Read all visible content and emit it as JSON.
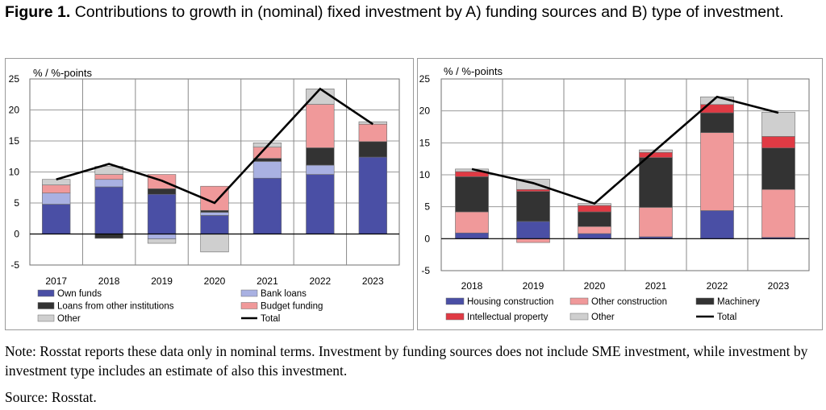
{
  "figure": {
    "number": "Figure 1.",
    "caption": "Contributions to growth in (nominal) fixed investment by A) funding sources and B) type of investment."
  },
  "note": "Note: Rosstat reports these data only in nominal terms. Investment by funding sources does not include SME investment, while investment by investment type includes an estimate of also this investment.",
  "source": "Source: Rosstat.",
  "chart_data": [
    {
      "type": "bar",
      "stacked": true,
      "title": "",
      "ylabel": "% / %-points",
      "ylim": [
        -5,
        25
      ],
      "yticks": [
        -5,
        0,
        5,
        10,
        15,
        20,
        25
      ],
      "grid": true,
      "legend_position": "bottom",
      "categories": [
        "2017",
        "2018",
        "2019",
        "2020",
        "2021",
        "2022",
        "2023"
      ],
      "series": [
        {
          "name": "Own funds",
          "color": "#4a4fa5",
          "values": [
            4.8,
            7.6,
            6.4,
            3.0,
            9.0,
            9.6,
            12.4
          ]
        },
        {
          "name": "Bank loans",
          "color": "#a9b1e2",
          "values": [
            1.8,
            1.2,
            -0.8,
            0.5,
            2.7,
            1.5,
            0.0
          ]
        },
        {
          "name": "Loans from other institutions",
          "color": "#333333",
          "values": [
            0.0,
            -0.7,
            0.9,
            0.3,
            0.5,
            2.8,
            2.5
          ]
        },
        {
          "name": "Budget funding",
          "color": "#f0999a",
          "values": [
            1.3,
            0.8,
            2.3,
            3.9,
            1.8,
            7.0,
            2.8
          ]
        },
        {
          "name": "Other",
          "color": "#cfcfcf",
          "values": [
            0.9,
            1.3,
            -0.7,
            -2.9,
            0.7,
            2.5,
            0.4
          ]
        }
      ],
      "line_series": {
        "name": "Total",
        "color": "#000000",
        "values": [
          8.8,
          11.3,
          8.6,
          5.0,
          14.2,
          23.4,
          17.7
        ]
      }
    },
    {
      "type": "bar",
      "stacked": true,
      "title": "",
      "ylabel": "% / %-points",
      "ylim": [
        -5,
        25
      ],
      "yticks": [
        -5,
        0,
        5,
        10,
        15,
        20,
        25
      ],
      "grid": true,
      "legend_position": "bottom",
      "categories": [
        "2018",
        "2019",
        "2020",
        "2021",
        "2022",
        "2023"
      ],
      "series": [
        {
          "name": "Housing construction",
          "color": "#4a4fa5",
          "values": [
            0.9,
            2.7,
            0.8,
            0.3,
            4.4,
            0.2
          ]
        },
        {
          "name": "Other construction",
          "color": "#f0999a",
          "values": [
            3.3,
            -0.6,
            1.1,
            4.6,
            12.2,
            7.5
          ]
        },
        {
          "name": "Machinery",
          "color": "#333333",
          "values": [
            5.5,
            4.7,
            2.3,
            7.8,
            3.1,
            6.5
          ]
        },
        {
          "name": "Intellectual property",
          "color": "#e03a44",
          "values": [
            0.8,
            0.3,
            1.0,
            0.8,
            1.3,
            1.8
          ]
        },
        {
          "name": "Other",
          "color": "#cfcfcf",
          "values": [
            0.4,
            1.6,
            0.3,
            0.4,
            1.2,
            3.8
          ]
        }
      ],
      "line_series": {
        "name": "Total",
        "color": "#000000",
        "values": [
          10.9,
          8.7,
          5.5,
          13.9,
          22.2,
          19.7
        ]
      }
    }
  ]
}
